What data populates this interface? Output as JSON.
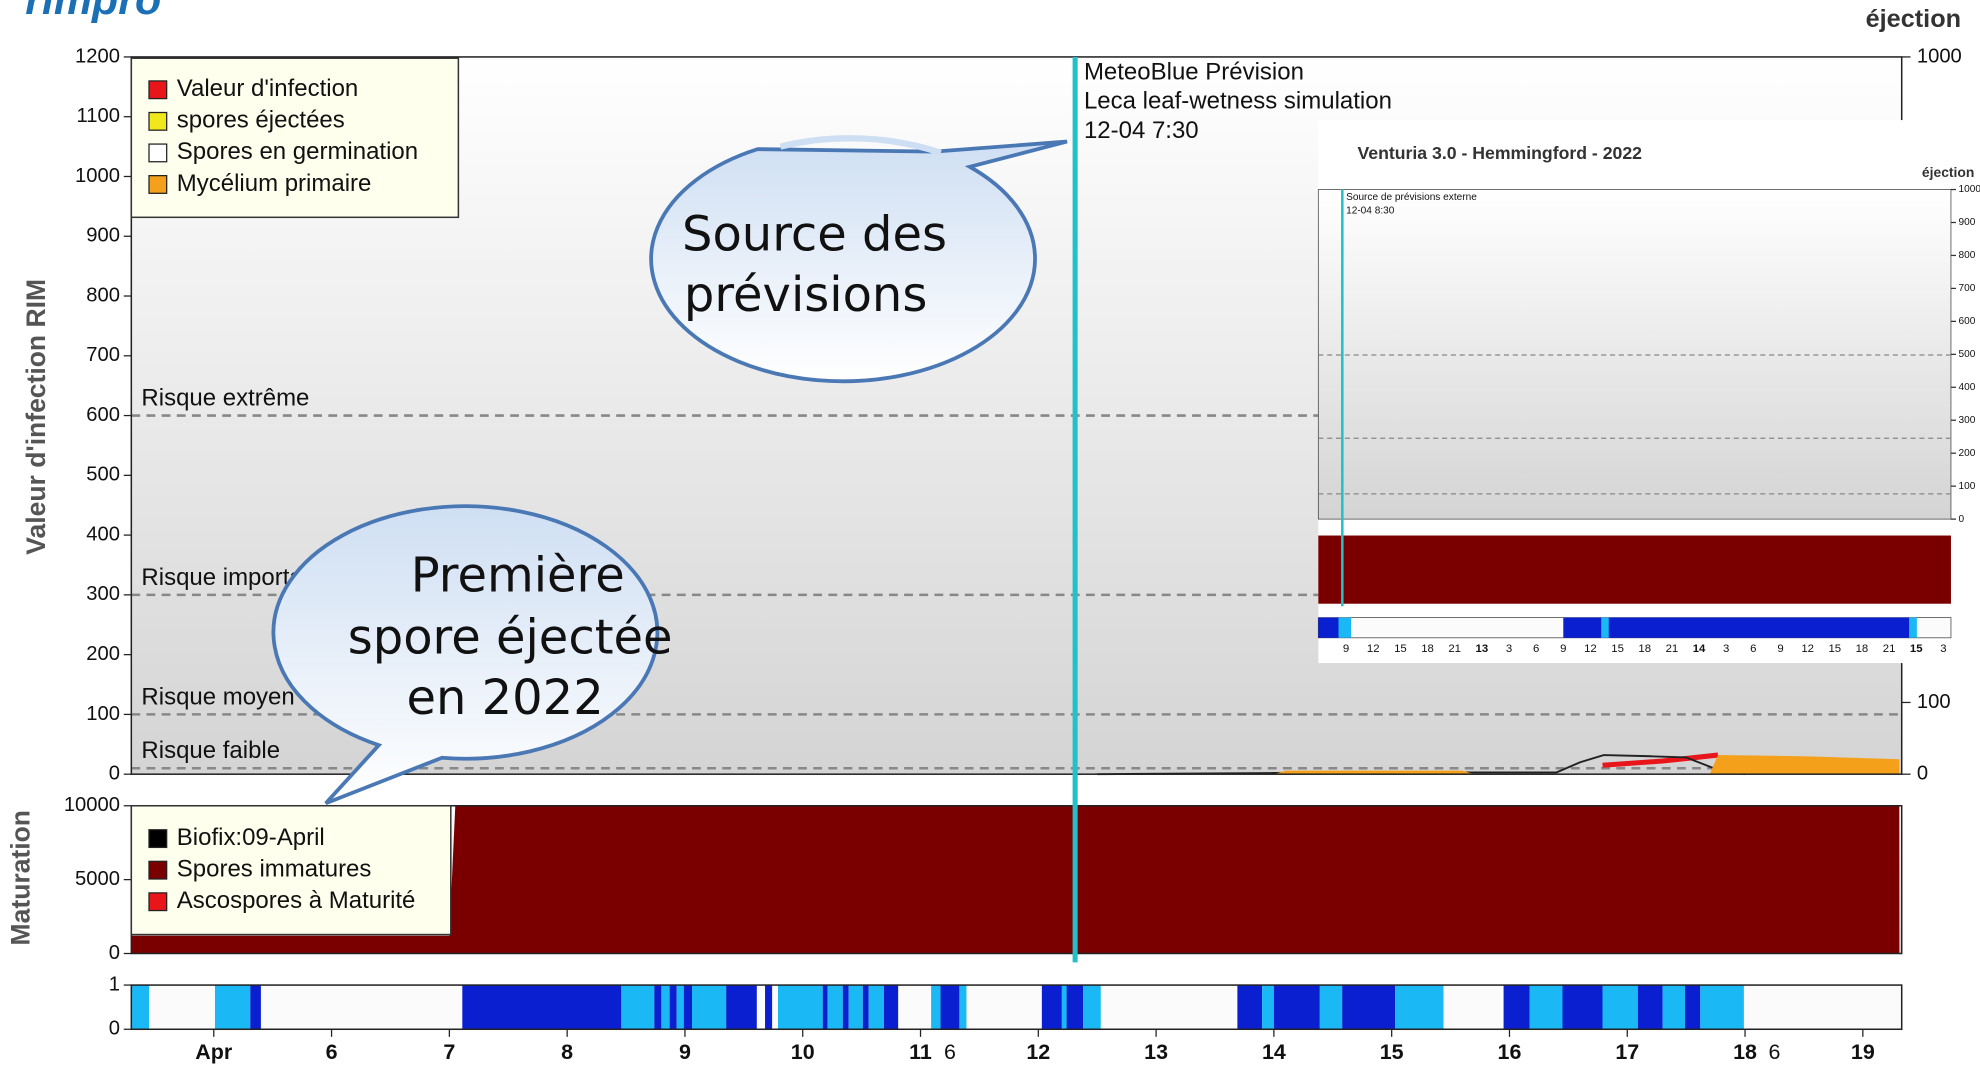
{
  "logo": "rimpro",
  "chart_data": [
    {
      "type": "line",
      "y_label": "Valeur d'infection RIM",
      "y2_label": "éjection",
      "xlim": [
        4.3,
        19.33
      ],
      "ylim": [
        0,
        1200
      ],
      "yticks": [
        0,
        100,
        200,
        300,
        400,
        500,
        600,
        700,
        800,
        900,
        1000,
        1100,
        1200
      ],
      "y2lim": [
        0,
        1000
      ],
      "y2ticks": [
        0,
        100,
        1000
      ],
      "legend_position": "upper left",
      "thresholds": [
        {
          "label": "Risque extrême",
          "value": 600
        },
        {
          "label": "Risque important",
          "value": 300
        },
        {
          "label": "Risque moyen",
          "value": 100
        },
        {
          "label": "Risque faible",
          "value": 10
        }
      ],
      "forecast": {
        "x": 12.3125,
        "color": "#22c1c9",
        "lines": [
          "MeteoBlue Prévision",
          "Leca leaf-wetness simulation",
          "12-04 7:30"
        ]
      },
      "series": [
        {
          "name": "Valeur d'infection",
          "color": "#e8151b",
          "style": "line",
          "x": [
            16.79,
            17.3,
            17.77
          ],
          "values": [
            15,
            22,
            32
          ]
        },
        {
          "name": "spores éjectées",
          "color": "#f0e81a",
          "style": "line",
          "x": [],
          "values": []
        },
        {
          "name": "Spores en germination",
          "color": "#ffffff",
          "line_color": "#222222",
          "style": "line",
          "x": [
            12.5,
            14.0,
            15.5,
            16.4,
            16.6,
            16.8,
            17.2,
            17.5,
            17.8,
            18.0
          ],
          "values": [
            0,
            2,
            3,
            3,
            20,
            32,
            30,
            28,
            5,
            0
          ]
        },
        {
          "name": "Mycélium primaire",
          "color": "#f5a01a",
          "style": "area",
          "x": [
            12.3,
            14.0,
            14.1,
            15.6,
            15.7,
            17.7,
            17.77,
            18.5,
            19.31
          ],
          "values": [
            0,
            0,
            6,
            6,
            0,
            0,
            32,
            30,
            25
          ]
        }
      ]
    },
    {
      "type": "area",
      "y_label": "Maturation",
      "xlim": [
        4.3,
        19.33
      ],
      "ylim": [
        0,
        10000
      ],
      "yticks": [
        0,
        5000,
        10000
      ],
      "legend_position": "upper left",
      "series": [
        {
          "name": "Biofix:09-April",
          "color": "#000000",
          "style": "area",
          "x": [],
          "values": []
        },
        {
          "name": "Spores immatures",
          "color": "#7a0000",
          "style": "area",
          "x": [
            4.3,
            7.0,
            7.05,
            19.31
          ],
          "values": [
            1200,
            1200,
            9950,
            9950
          ]
        },
        {
          "name": "Ascospores à Maturité",
          "color": "#e8151b",
          "style": "area",
          "x": [],
          "values": []
        }
      ]
    },
    {
      "type": "bar",
      "xlim": [
        4.3,
        19.33
      ],
      "ylim": [
        0,
        1
      ],
      "yticks": [
        0,
        1
      ],
      "xticks": [
        {
          "value": 5,
          "label": "Apr"
        },
        6,
        7,
        8,
        9,
        10,
        11,
        12,
        13,
        14,
        15,
        16,
        17,
        18,
        19
      ],
      "minor_xticks": [
        {
          "value": 11.25,
          "label": "6"
        },
        {
          "value": 18.25,
          "label": "6"
        }
      ],
      "segments": [
        {
          "start": 4.3,
          "end": 4.45,
          "color": "#1ab8f5"
        },
        {
          "start": 5.01,
          "end": 5.31,
          "color": "#1ab8f5"
        },
        {
          "start": 5.31,
          "end": 5.4,
          "color": "#0a1fd0"
        },
        {
          "start": 7.11,
          "end": 8.46,
          "color": "#0a1fd0"
        },
        {
          "start": 8.46,
          "end": 8.74,
          "color": "#1ab8f5"
        },
        {
          "start": 8.74,
          "end": 8.8,
          "color": "#0a1fd0"
        },
        {
          "start": 8.8,
          "end": 8.87,
          "color": "#1ab8f5"
        },
        {
          "start": 8.87,
          "end": 8.93,
          "color": "#0a1fd0"
        },
        {
          "start": 8.93,
          "end": 8.99,
          "color": "#1ab8f5"
        },
        {
          "start": 8.99,
          "end": 9.06,
          "color": "#0a1fd0"
        },
        {
          "start": 9.06,
          "end": 9.35,
          "color": "#1ab8f5"
        },
        {
          "start": 9.35,
          "end": 9.61,
          "color": "#0a1fd0"
        },
        {
          "start": 9.68,
          "end": 9.74,
          "color": "#0a1fd0"
        },
        {
          "start": 9.79,
          "end": 10.17,
          "color": "#1ab8f5"
        },
        {
          "start": 10.17,
          "end": 10.21,
          "color": "#0a1fd0"
        },
        {
          "start": 10.21,
          "end": 10.34,
          "color": "#1ab8f5"
        },
        {
          "start": 10.34,
          "end": 10.39,
          "color": "#0a1fd0"
        },
        {
          "start": 10.39,
          "end": 10.51,
          "color": "#1ab8f5"
        },
        {
          "start": 10.51,
          "end": 10.56,
          "color": "#0a1fd0"
        },
        {
          "start": 10.56,
          "end": 10.69,
          "color": "#1ab8f5"
        },
        {
          "start": 10.69,
          "end": 10.81,
          "color": "#0a1fd0"
        },
        {
          "start": 11.09,
          "end": 11.17,
          "color": "#1ab8f5"
        },
        {
          "start": 11.17,
          "end": 11.33,
          "color": "#0a1fd0"
        },
        {
          "start": 11.33,
          "end": 11.39,
          "color": "#1ab8f5"
        },
        {
          "start": 12.03,
          "end": 12.2,
          "color": "#0a1fd0"
        },
        {
          "start": 12.2,
          "end": 12.24,
          "color": "#1ab8f5"
        },
        {
          "start": 12.24,
          "end": 12.38,
          "color": "#0a1fd0"
        },
        {
          "start": 12.38,
          "end": 12.53,
          "color": "#1ab8f5"
        },
        {
          "start": 13.69,
          "end": 13.9,
          "color": "#0a1fd0"
        },
        {
          "start": 13.9,
          "end": 14.0,
          "color": "#1ab8f5"
        },
        {
          "start": 14.0,
          "end": 14.39,
          "color": "#0a1fd0"
        },
        {
          "start": 14.39,
          "end": 14.58,
          "color": "#1ab8f5"
        },
        {
          "start": 14.58,
          "end": 15.03,
          "color": "#0a1fd0"
        },
        {
          "start": 15.03,
          "end": 15.44,
          "color": "#1ab8f5"
        },
        {
          "start": 15.95,
          "end": 16.17,
          "color": "#0a1fd0"
        },
        {
          "start": 16.17,
          "end": 16.45,
          "color": "#1ab8f5"
        },
        {
          "start": 16.45,
          "end": 16.79,
          "color": "#0a1fd0"
        },
        {
          "start": 16.79,
          "end": 17.09,
          "color": "#1ab8f5"
        },
        {
          "start": 17.09,
          "end": 17.3,
          "color": "#0a1fd0"
        },
        {
          "start": 17.3,
          "end": 17.49,
          "color": "#1ab8f5"
        },
        {
          "start": 17.49,
          "end": 17.62,
          "color": "#0a1fd0"
        },
        {
          "start": 17.62,
          "end": 17.99,
          "color": "#1ab8f5"
        }
      ]
    }
  ],
  "inset": {
    "title": "Venturia 3.0 - Hemmingford - 2022",
    "y2_label": "éjection",
    "y2lim": [
      0,
      1000
    ],
    "y2ticks": [
      0,
      100,
      200,
      300,
      400,
      500,
      600,
      700,
      800,
      900,
      1000
    ],
    "annotation": [
      "Source de prévisions externe",
      "12-04 8:30"
    ],
    "xtick_groups": [
      [
        9,
        12,
        15,
        18,
        21
      ],
      [
        13,
        3,
        6,
        9,
        12,
        15,
        18,
        21
      ],
      [
        14,
        3,
        6,
        9,
        12,
        15,
        18,
        21
      ],
      [
        15,
        3
      ]
    ]
  },
  "callouts": [
    {
      "lines": [
        "Source des",
        "prévisions"
      ]
    },
    {
      "lines": [
        "Première",
        "spore éjectée",
        "en 2022"
      ]
    }
  ]
}
